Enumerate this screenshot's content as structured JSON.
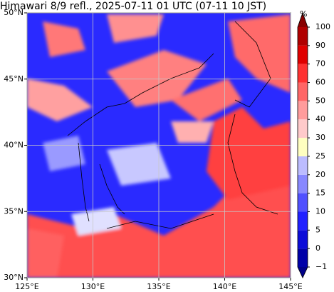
{
  "map": {
    "title": "Himawari 8/9 refl., 2025-07-11 01 UTC (07-11 10 JST)",
    "xlim": [
      125,
      145
    ],
    "ylim": [
      30,
      50
    ],
    "xticks": [
      {
        "value": 125,
        "label": "125°E"
      },
      {
        "value": 130,
        "label": "130°E"
      },
      {
        "value": 135,
        "label": "135°E"
      },
      {
        "value": 140,
        "label": "140°E"
      },
      {
        "value": 145,
        "label": "145°E"
      }
    ],
    "yticks": [
      {
        "value": 30,
        "label": "30°N"
      },
      {
        "value": 35,
        "label": "35°N"
      },
      {
        "value": 40,
        "label": "40°N"
      },
      {
        "value": 45,
        "label": "45°N"
      },
      {
        "value": 50,
        "label": "50°N"
      }
    ],
    "grid": true,
    "colorbar": {
      "label": "%",
      "ticks": [
        {
          "value": -1,
          "label": "−1"
        },
        0,
        5,
        10,
        15,
        20,
        25,
        30,
        40,
        50,
        60,
        70,
        90,
        100
      ],
      "colors": [
        "#0000a8",
        "#0c0cd8",
        "#2020ff",
        "#5050ff",
        "#8888ff",
        "#bcbcff",
        "#ffffc0",
        "#ffcaca",
        "#ff9c9c",
        "#ff6666",
        "#ff3232",
        "#e00000",
        "#b00000"
      ],
      "under_color": "#000088",
      "over_color": "#880000"
    }
  }
}
